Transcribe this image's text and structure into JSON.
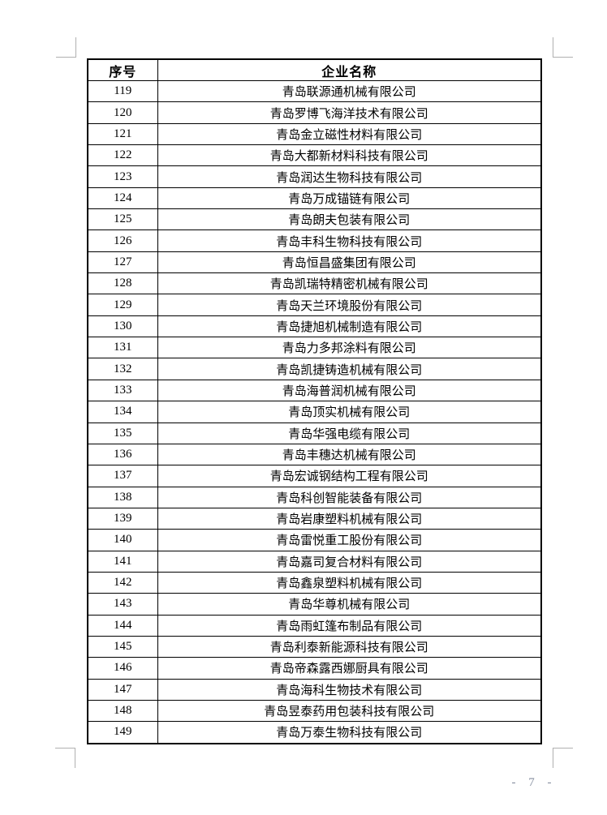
{
  "page": {
    "number_label": "- 7 -"
  },
  "table": {
    "headers": [
      "序号",
      "企业名称"
    ],
    "rows": [
      {
        "no": "119",
        "name": "青岛联源通机械有限公司"
      },
      {
        "no": "120",
        "name": "青岛罗博飞海洋技术有限公司"
      },
      {
        "no": "121",
        "name": "青岛金立磁性材料有限公司"
      },
      {
        "no": "122",
        "name": "青岛大都新材料科技有限公司"
      },
      {
        "no": "123",
        "name": "青岛润达生物科技有限公司"
      },
      {
        "no": "124",
        "name": "青岛万成锚链有限公司"
      },
      {
        "no": "125",
        "name": "青岛朗夫包装有限公司"
      },
      {
        "no": "126",
        "name": "青岛丰科生物科技有限公司"
      },
      {
        "no": "127",
        "name": "青岛恒昌盛集团有限公司"
      },
      {
        "no": "128",
        "name": "青岛凯瑞特精密机械有限公司"
      },
      {
        "no": "129",
        "name": "青岛天兰环境股份有限公司"
      },
      {
        "no": "130",
        "name": "青岛捷旭机械制造有限公司"
      },
      {
        "no": "131",
        "name": "青岛力多邦涂料有限公司"
      },
      {
        "no": "132",
        "name": "青岛凯捷铸造机械有限公司"
      },
      {
        "no": "133",
        "name": "青岛海普润机械有限公司"
      },
      {
        "no": "134",
        "name": "青岛顶实机械有限公司"
      },
      {
        "no": "135",
        "name": "青岛华强电缆有限公司"
      },
      {
        "no": "136",
        "name": "青岛丰穗达机械有限公司"
      },
      {
        "no": "137",
        "name": "青岛宏诚钢结构工程有限公司"
      },
      {
        "no": "138",
        "name": "青岛科创智能装备有限公司"
      },
      {
        "no": "139",
        "name": "青岛岩康塑料机械有限公司"
      },
      {
        "no": "140",
        "name": "青岛雷悦重工股份有限公司"
      },
      {
        "no": "141",
        "name": "青岛嘉司复合材料有限公司"
      },
      {
        "no": "142",
        "name": "青岛鑫泉塑料机械有限公司"
      },
      {
        "no": "143",
        "name": "青岛华尊机械有限公司"
      },
      {
        "no": "144",
        "name": "青岛雨虹篷布制品有限公司"
      },
      {
        "no": "145",
        "name": "青岛利泰新能源科技有限公司"
      },
      {
        "no": "146",
        "name": "青岛帝森露西娜厨具有限公司"
      },
      {
        "no": "147",
        "name": "青岛海科生物技术有限公司"
      },
      {
        "no": "148",
        "name": "青岛昱泰药用包装科技有限公司"
      },
      {
        "no": "149",
        "name": "青岛万泰生物科技有限公司"
      }
    ]
  }
}
